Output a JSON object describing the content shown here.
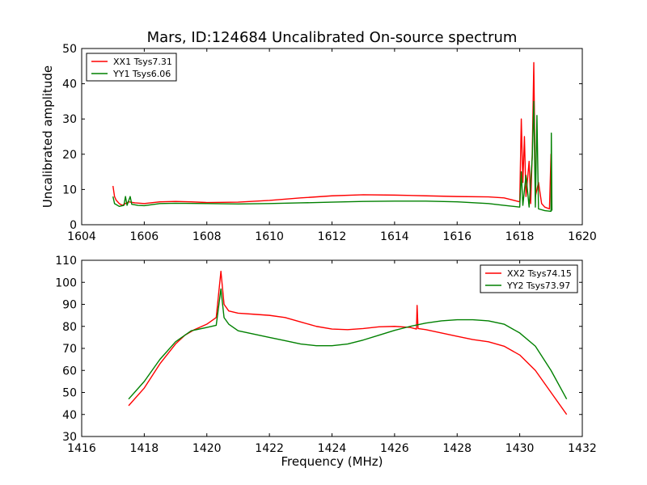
{
  "chart_data": [
    {
      "type": "line",
      "title": "Mars, ID:124684 Uncalibrated On-source spectrum",
      "xlabel": "",
      "ylabel": "Uncalibrated amplitude",
      "xlim": [
        1604,
        1620
      ],
      "ylim": [
        0,
        50
      ],
      "xticks": [
        "1604",
        "1606",
        "1608",
        "1610",
        "1612",
        "1614",
        "1616",
        "1618",
        "1620"
      ],
      "yticks": [
        "0",
        "10",
        "20",
        "30",
        "40",
        "50"
      ],
      "grid": false,
      "legend_position": "top-left",
      "series": [
        {
          "name": "XX1 Tsys7.31",
          "color": "#ff0000",
          "points": [
            [
              1605.0,
              11.0
            ],
            [
              1605.05,
              8.0
            ],
            [
              1605.1,
              7.0
            ],
            [
              1605.2,
              6.0
            ],
            [
              1605.3,
              5.5
            ],
            [
              1605.5,
              6.5
            ],
            [
              1605.7,
              6.2
            ],
            [
              1606.0,
              6.0
            ],
            [
              1606.5,
              6.5
            ],
            [
              1607.0,
              6.6
            ],
            [
              1607.5,
              6.5
            ],
            [
              1608.0,
              6.3
            ],
            [
              1609.0,
              6.4
            ],
            [
              1610.0,
              6.9
            ],
            [
              1611.0,
              7.6
            ],
            [
              1612.0,
              8.2
            ],
            [
              1613.0,
              8.5
            ],
            [
              1614.0,
              8.4
            ],
            [
              1615.0,
              8.2
            ],
            [
              1616.0,
              8.0
            ],
            [
              1617.0,
              7.9
            ],
            [
              1617.5,
              7.6
            ],
            [
              1618.0,
              6.5
            ],
            [
              1618.05,
              30.0
            ],
            [
              1618.1,
              12.0
            ],
            [
              1618.15,
              25.0
            ],
            [
              1618.2,
              8.0
            ],
            [
              1618.3,
              18.0
            ],
            [
              1618.35,
              6.0
            ],
            [
              1618.4,
              20.0
            ],
            [
              1618.45,
              46.0
            ],
            [
              1618.5,
              8.0
            ],
            [
              1618.6,
              12.0
            ],
            [
              1618.7,
              6.0
            ],
            [
              1618.8,
              5.0
            ],
            [
              1618.95,
              4.5
            ],
            [
              1619.0,
              20.0
            ],
            [
              1619.02,
              4.0
            ]
          ]
        },
        {
          "name": "YY1 Tsys6.06",
          "color": "#008000",
          "points": [
            [
              1605.0,
              8.0
            ],
            [
              1605.05,
              6.0
            ],
            [
              1605.2,
              5.2
            ],
            [
              1605.35,
              5.5
            ],
            [
              1605.4,
              8.0
            ],
            [
              1605.45,
              5.5
            ],
            [
              1605.55,
              8.0
            ],
            [
              1605.6,
              5.8
            ],
            [
              1605.8,
              5.5
            ],
            [
              1606.0,
              5.4
            ],
            [
              1606.5,
              6.0
            ],
            [
              1607.0,
              6.1
            ],
            [
              1608.0,
              6.0
            ],
            [
              1609.0,
              5.9
            ],
            [
              1610.0,
              6.0
            ],
            [
              1611.0,
              6.2
            ],
            [
              1612.0,
              6.4
            ],
            [
              1613.0,
              6.6
            ],
            [
              1614.0,
              6.7
            ],
            [
              1615.0,
              6.7
            ],
            [
              1616.0,
              6.5
            ],
            [
              1617.0,
              6.0
            ],
            [
              1617.5,
              5.5
            ],
            [
              1618.0,
              5.0
            ],
            [
              1618.05,
              15.0
            ],
            [
              1618.1,
              5.5
            ],
            [
              1618.2,
              14.0
            ],
            [
              1618.3,
              5.0
            ],
            [
              1618.4,
              19.0
            ],
            [
              1618.45,
              35.0
            ],
            [
              1618.5,
              5.0
            ],
            [
              1618.55,
              31.0
            ],
            [
              1618.6,
              4.5
            ],
            [
              1618.8,
              4.0
            ],
            [
              1619.0,
              3.8
            ],
            [
              1619.01,
              26.0
            ],
            [
              1619.03,
              4.0
            ]
          ]
        }
      ]
    },
    {
      "type": "line",
      "title": "",
      "xlabel": "Frequency (MHz)",
      "ylabel": "",
      "xlim": [
        1416,
        1432
      ],
      "ylim": [
        30,
        110
      ],
      "xticks": [
        "1416",
        "1418",
        "1420",
        "1422",
        "1424",
        "1426",
        "1428",
        "1430",
        "1432"
      ],
      "yticks": [
        "30",
        "40",
        "50",
        "60",
        "70",
        "80",
        "90",
        "100",
        "110"
      ],
      "grid": false,
      "legend_position": "top-right",
      "series": [
        {
          "name": "XX2 Tsys74.15",
          "color": "#ff0000",
          "points": [
            [
              1417.5,
              44.0
            ],
            [
              1418.0,
              52.0
            ],
            [
              1418.5,
              63.0
            ],
            [
              1419.0,
              72.0
            ],
            [
              1419.3,
              76.0
            ],
            [
              1419.6,
              78.5
            ],
            [
              1420.0,
              81.0
            ],
            [
              1420.3,
              84.0
            ],
            [
              1420.45,
              105.0
            ],
            [
              1420.55,
              90.0
            ],
            [
              1420.7,
              87.0
            ],
            [
              1421.0,
              86.0
            ],
            [
              1421.5,
              85.5
            ],
            [
              1422.0,
              85.0
            ],
            [
              1422.5,
              84.0
            ],
            [
              1423.0,
              82.0
            ],
            [
              1423.5,
              80.0
            ],
            [
              1424.0,
              78.8
            ],
            [
              1424.5,
              78.5
            ],
            [
              1425.0,
              79.0
            ],
            [
              1425.5,
              79.8
            ],
            [
              1426.0,
              80.0
            ],
            [
              1426.5,
              79.5
            ],
            [
              1426.7,
              78.8
            ],
            [
              1426.72,
              89.5
            ],
            [
              1426.75,
              79.0
            ],
            [
              1427.0,
              78.5
            ],
            [
              1427.5,
              77.0
            ],
            [
              1428.0,
              75.5
            ],
            [
              1428.5,
              74.0
            ],
            [
              1429.0,
              73.0
            ],
            [
              1429.5,
              71.0
            ],
            [
              1430.0,
              67.0
            ],
            [
              1430.5,
              60.0
            ],
            [
              1431.0,
              50.0
            ],
            [
              1431.5,
              40.0
            ]
          ]
        },
        {
          "name": "YY2 Tsys73.97",
          "color": "#008000",
          "points": [
            [
              1417.5,
              47.0
            ],
            [
              1418.0,
              55.0
            ],
            [
              1418.5,
              65.0
            ],
            [
              1419.0,
              73.0
            ],
            [
              1419.5,
              78.0
            ],
            [
              1420.0,
              79.5
            ],
            [
              1420.3,
              80.5
            ],
            [
              1420.45,
              97.0
            ],
            [
              1420.55,
              84.0
            ],
            [
              1420.7,
              81.0
            ],
            [
              1421.0,
              78.0
            ],
            [
              1421.5,
              76.5
            ],
            [
              1422.0,
              75.0
            ],
            [
              1422.5,
              73.5
            ],
            [
              1423.0,
              72.0
            ],
            [
              1423.5,
              71.2
            ],
            [
              1424.0,
              71.2
            ],
            [
              1424.5,
              72.0
            ],
            [
              1425.0,
              73.8
            ],
            [
              1425.5,
              76.0
            ],
            [
              1426.0,
              78.2
            ],
            [
              1426.5,
              80.0
            ],
            [
              1427.0,
              81.5
            ],
            [
              1427.5,
              82.5
            ],
            [
              1428.0,
              83.0
            ],
            [
              1428.5,
              83.0
            ],
            [
              1429.0,
              82.5
            ],
            [
              1429.5,
              81.0
            ],
            [
              1430.0,
              77.0
            ],
            [
              1430.5,
              71.0
            ],
            [
              1431.0,
              60.0
            ],
            [
              1431.5,
              47.0
            ]
          ]
        }
      ]
    }
  ]
}
